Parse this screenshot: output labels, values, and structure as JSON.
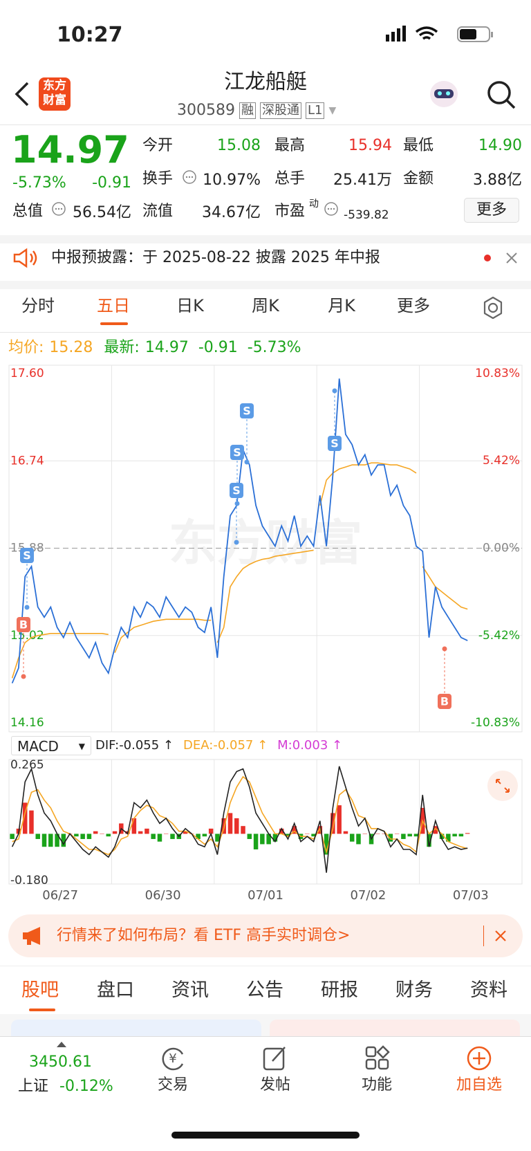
{
  "status": {
    "time": "10:27"
  },
  "header": {
    "logo": [
      "东方",
      "财富"
    ],
    "title": "江龙船艇",
    "code": "300589",
    "tags": [
      "融",
      "深股通",
      "L1"
    ]
  },
  "quote": {
    "price": "14.97",
    "change_pct": "-5.73%",
    "change": "-0.91",
    "open": {
      "label": "今开",
      "value": "15.08"
    },
    "high": {
      "label": "最高",
      "value": "15.94"
    },
    "low": {
      "label": "最低",
      "value": "14.90"
    },
    "turnover": {
      "label": "换手",
      "value": "10.97%"
    },
    "volume": {
      "label": "总手",
      "value": "25.41万"
    },
    "amount": {
      "label": "金额",
      "value": "3.88亿"
    },
    "market_cap": {
      "label": "总值",
      "value": "56.54亿"
    },
    "float_cap": {
      "label": "流值",
      "value": "34.67亿"
    },
    "pe": {
      "label": "市盈",
      "sup": "动",
      "value": "-539.82"
    },
    "more": "更多"
  },
  "notice": "中报预披露：于 2025-08-22 披露 2025 年中报",
  "tabs": [
    "分时",
    "五日",
    "日K",
    "周K",
    "月K",
    "更多"
  ],
  "chart_data": {
    "type": "line",
    "watermark": "东方财富",
    "latest": {
      "price": "14.97",
      "change": "-0.91",
      "change_pct": "-5.73%"
    },
    "avg_latest": "15.28",
    "categories": [
      "06/27",
      "06/30",
      "07/01",
      "07/02",
      "07/03"
    ],
    "baseline": 15.88,
    "ylim": [
      14.16,
      17.6
    ],
    "yticks": [
      {
        "value": 17.6,
        "label": "17.60"
      },
      16.74,
      15.88,
      15.02,
      14.16
    ],
    "y2lim": [
      -10.83,
      10.83
    ],
    "y2ticks": [
      {
        "value": 10.83,
        "label": "10.83%"
      },
      {
        "value": 5.42,
        "label": "5.42%"
      },
      {
        "value": 0,
        "label": "0.00%"
      },
      {
        "value": -5.42,
        "label": "-5.42%"
      },
      {
        "value": -10.83,
        "label": "-10.83%"
      }
    ],
    "trade_marks": [
      "B",
      "S",
      "S",
      "S",
      "S",
      "S",
      "B"
    ],
    "series": [
      {
        "name": "最新:",
        "color": "#2a6fd6",
        "values": [
          [
            14.55,
            14.7,
            15.6,
            15.7,
            15.3,
            15.2,
            15.3,
            15.1,
            15.0,
            15.15,
            15.0,
            14.9,
            14.8,
            14.95,
            14.75,
            14.65
          ],
          [
            14.9,
            15.1,
            15.0,
            15.3,
            15.2,
            15.35,
            15.3,
            15.2,
            15.4,
            15.3,
            15.2,
            15.3,
            15.25,
            15.1,
            15.05,
            15.3
          ],
          [
            14.8,
            15.6,
            16.2,
            16.3,
            16.85,
            16.7,
            16.3,
            16.1,
            16.0,
            15.9,
            16.1,
            15.95,
            16.2,
            15.9,
            16.0,
            15.9
          ],
          [
            16.4,
            15.9,
            16.6,
            17.55,
            17.0,
            16.9,
            16.7,
            16.8,
            16.6,
            16.7,
            16.7,
            16.4,
            16.5,
            16.3,
            16.2,
            15.9
          ],
          [
            15.85,
            15.0,
            15.5,
            15.3,
            15.2,
            15.1,
            15.0,
            14.97
          ]
        ]
      },
      {
        "name": "均价:",
        "color": "#f5a623",
        "values": [
          [
            14.6,
            14.8,
            14.95,
            15.0,
            15.02,
            15.03,
            15.04,
            15.04,
            15.04,
            15.04,
            15.04,
            15.04,
            15.04,
            15.04,
            15.04,
            15.03
          ],
          [
            14.85,
            15.0,
            15.05,
            15.1,
            15.12,
            15.14,
            15.16,
            15.17,
            15.18,
            15.18,
            15.18,
            15.18,
            15.18,
            15.18,
            15.17,
            15.17
          ],
          [
            14.95,
            15.1,
            15.5,
            15.6,
            15.68,
            15.72,
            15.75,
            15.77,
            15.78,
            15.8,
            15.81,
            15.82,
            15.83,
            15.84,
            15.85,
            15.86
          ],
          [
            16.3,
            16.55,
            16.62,
            16.66,
            16.68,
            16.7,
            16.7,
            16.7,
            16.72,
            16.72,
            16.71,
            16.7,
            16.7,
            16.68,
            16.66,
            16.62
          ],
          [
            15.7,
            15.6,
            15.5,
            15.45,
            15.4,
            15.35,
            15.3,
            15.28
          ]
        ]
      }
    ]
  },
  "macd": {
    "type": "bar",
    "selector": "MACD",
    "dif_label": "DIF:-0.055 ↑",
    "dea_label": "DEA:-0.057 ↑",
    "m_label": "M:0.003 ↑",
    "ylim": [
      -0.18,
      0.265
    ],
    "yticks": [
      {
        "value": 0.265,
        "label": "0.265"
      },
      {
        "value": -0.18,
        "label": "-0.180"
      }
    ],
    "dif": {
      "color": "#222222",
      "values": [
        [
          -0.05,
          0.0,
          0.2,
          0.25,
          0.15,
          0.08,
          0.05,
          0.0,
          -0.04,
          0.0,
          -0.03,
          -0.06,
          -0.08,
          -0.05,
          -0.07,
          -0.09
        ],
        [
          -0.05,
          0.02,
          0.0,
          0.12,
          0.1,
          0.13,
          0.08,
          0.04,
          0.06,
          0.02,
          -0.01,
          0.02,
          0.0,
          -0.04,
          -0.05,
          0.0
        ],
        [
          -0.08,
          0.08,
          0.2,
          0.24,
          0.25,
          0.18,
          0.08,
          0.04,
          0.0,
          -0.03,
          0.02,
          -0.02,
          0.04,
          -0.03,
          -0.01,
          -0.03
        ],
        [
          0.05,
          -0.15,
          0.1,
          0.26,
          0.18,
          0.1,
          0.03,
          0.06,
          -0.02,
          0.02,
          0.01,
          -0.05,
          -0.02,
          -0.06,
          -0.06,
          -0.08
        ],
        [
          0.15,
          -0.05,
          0.05,
          -0.02,
          -0.06,
          -0.05,
          -0.06,
          -0.055
        ]
      ]
    },
    "dea": {
      "color": "#f5a623",
      "values": [
        [
          -0.03,
          -0.02,
          0.08,
          0.16,
          0.17,
          0.13,
          0.1,
          0.05,
          0.01,
          0.0,
          -0.02,
          -0.04,
          -0.06,
          -0.06,
          -0.07,
          -0.08
        ],
        [
          -0.06,
          -0.02,
          -0.01,
          0.06,
          0.09,
          0.11,
          0.1,
          0.07,
          0.06,
          0.04,
          0.01,
          0.01,
          0.0,
          -0.02,
          -0.04,
          -0.02
        ],
        [
          -0.05,
          0.02,
          0.12,
          0.18,
          0.22,
          0.2,
          0.14,
          0.08,
          0.04,
          0.0,
          0.0,
          -0.01,
          0.01,
          -0.01,
          -0.01,
          -0.02
        ],
        [
          0.02,
          -0.07,
          0.02,
          0.15,
          0.17,
          0.13,
          0.07,
          0.06,
          0.02,
          0.02,
          0.01,
          -0.02,
          -0.02,
          -0.04,
          -0.05,
          -0.07
        ],
        [
          0.05,
          0.0,
          0.02,
          0.0,
          -0.03,
          -0.04,
          -0.05,
          -0.057
        ]
      ]
    },
    "m": {
      "up_color": "#e8302a",
      "down_color": "#1aa31a",
      "values": [
        [
          -0.02,
          0.02,
          0.12,
          0.09,
          -0.02,
          -0.05,
          -0.05,
          -0.05,
          -0.05,
          0.0,
          -0.01,
          -0.02,
          -0.02,
          0.01,
          0.0,
          -0.01
        ],
        [
          0.01,
          0.04,
          0.01,
          0.06,
          0.01,
          0.02,
          -0.02,
          -0.03,
          0.0,
          -0.02,
          -0.02,
          0.01,
          0.0,
          -0.02,
          -0.01,
          0.02
        ],
        [
          -0.03,
          0.06,
          0.08,
          0.06,
          0.03,
          -0.02,
          -0.06,
          -0.04,
          -0.04,
          -0.03,
          0.02,
          -0.01,
          0.03,
          -0.02,
          0.0,
          -0.01
        ],
        [
          0.03,
          -0.08,
          0.08,
          0.11,
          0.01,
          -0.03,
          -0.04,
          0.0,
          -0.04,
          0.0,
          0.0,
          -0.03,
          0.0,
          -0.02,
          -0.01,
          -0.01
        ],
        [
          0.1,
          -0.05,
          0.03,
          -0.02,
          -0.03,
          -0.01,
          -0.01,
          0.003
        ]
      ]
    }
  },
  "banner": "行情来了如何布局？看 ETF 高手实时调仓>",
  "sections": [
    "股吧",
    "盘口",
    "资讯",
    "公告",
    "研报",
    "财务",
    "资料"
  ],
  "bottom": {
    "index_value": "3450.61",
    "index_name": "上证",
    "index_change": "-0.12%",
    "items": [
      "交易",
      "发帖",
      "功能",
      "加自选"
    ]
  }
}
